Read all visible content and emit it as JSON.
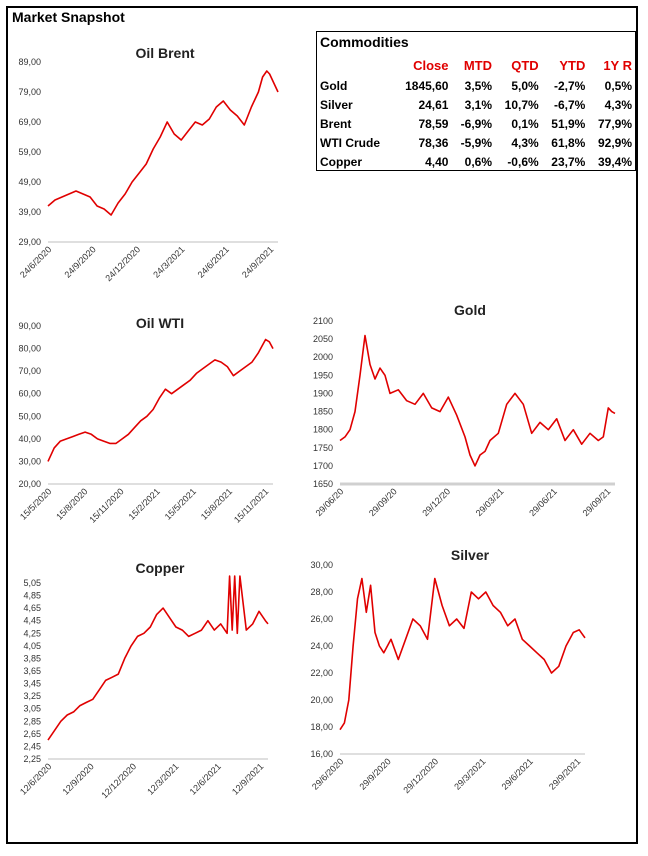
{
  "page": {
    "title": "Market Snapshot"
  },
  "table": {
    "title": "Commodities",
    "headers": [
      "",
      "Close",
      "MTD",
      "QTD",
      "YTD",
      "1Y R"
    ],
    "rows": [
      [
        "Gold",
        "1845,60",
        "3,5%",
        "5,0%",
        "-2,7%",
        "0,5%"
      ],
      [
        "Silver",
        "24,61",
        "3,1%",
        "10,7%",
        "-6,7%",
        "4,3%"
      ],
      [
        "Brent",
        "78,59",
        "-6,9%",
        "0,1%",
        "51,9%",
        "77,9%"
      ],
      [
        "WTI Crude",
        "78,36",
        "-5,9%",
        "4,3%",
        "61,8%",
        "92,9%"
      ],
      [
        "Copper",
        "4,40",
        "0,6%",
        "-0,6%",
        "23,7%",
        "39,4%"
      ]
    ]
  },
  "colors": {
    "line": "#e00000",
    "header": "#e00000",
    "gold_xaxis": "#d0d0d0"
  },
  "chart_data": [
    {
      "id": "brent",
      "type": "line",
      "title": "Oil Brent",
      "ylim": [
        29,
        89
      ],
      "yticks": [
        "29,00",
        "39,00",
        "49,00",
        "59,00",
        "69,00",
        "79,00",
        "89,00"
      ],
      "xticks": [
        "24/6/2020",
        "24/9/2020",
        "24/12/2020",
        "24/3/2021",
        "24/6/2021",
        "24/9/2021"
      ],
      "xlim": [
        0,
        16.4
      ],
      "series": [
        {
          "x": [
            0,
            0.5,
            1,
            1.5,
            2,
            2.5,
            3,
            3.5,
            4,
            4.5,
            5,
            5.5,
            6,
            6.5,
            7,
            7.5,
            8,
            8.5,
            9,
            9.5,
            10,
            10.5,
            11,
            11.5,
            12,
            12.5,
            13,
            13.5,
            14,
            14.5,
            15,
            15.3,
            15.6,
            15.8,
            16,
            16.2,
            16.4
          ],
          "y": [
            41,
            43,
            44,
            45,
            46,
            45,
            44,
            41,
            40,
            38,
            42,
            45,
            49,
            52,
            55,
            60,
            64,
            69,
            65,
            63,
            66,
            69,
            68,
            70,
            74,
            76,
            73,
            71,
            68,
            74,
            79,
            84,
            86,
            85,
            83,
            81,
            79
          ]
        }
      ]
    },
    {
      "id": "wti",
      "type": "line",
      "title": "Oil WTI",
      "ylim": [
        20,
        90
      ],
      "yticks": [
        "20,00",
        "30,00",
        "40,00",
        "50,00",
        "60,00",
        "70,00",
        "80,00",
        "90,00"
      ],
      "xticks": [
        "15/5/2020",
        "15/8/2020",
        "15/11/2020",
        "15/2/2021",
        "15/5/2021",
        "15/8/2021",
        "15/11/2021"
      ],
      "xlim": [
        0,
        18.2
      ],
      "series": [
        {
          "x": [
            0,
            0.5,
            1,
            1.5,
            2,
            2.5,
            3,
            3.5,
            4,
            4.5,
            5,
            5.5,
            6,
            6.5,
            7,
            7.5,
            8,
            8.5,
            9,
            9.5,
            10,
            10.5,
            11,
            11.5,
            12,
            12.5,
            13,
            13.5,
            14,
            14.5,
            15,
            15.5,
            16,
            16.5,
            17,
            17.3,
            17.6,
            17.9,
            18.2
          ],
          "y": [
            30,
            36,
            39,
            40,
            41,
            42,
            43,
            42,
            40,
            39,
            38,
            38,
            40,
            42,
            45,
            48,
            50,
            53,
            58,
            62,
            60,
            62,
            64,
            66,
            69,
            71,
            73,
            75,
            74,
            72,
            68,
            70,
            72,
            74,
            78,
            81,
            84,
            83,
            80
          ]
        }
      ]
    },
    {
      "id": "gold",
      "type": "line",
      "title": "Gold",
      "ylim": [
        1650,
        2100
      ],
      "yticks": [
        "1650",
        "1700",
        "1750",
        "1800",
        "1850",
        "1900",
        "1950",
        "2000",
        "2050",
        "2100"
      ],
      "xticks": [
        "29/06/20",
        "29/09/20",
        "29/12/20",
        "29/03/21",
        "29/06/21",
        "29/09/21"
      ],
      "xlim": [
        0,
        16.5
      ],
      "series": [
        {
          "x": [
            0,
            0.3,
            0.6,
            0.9,
            1.2,
            1.5,
            1.8,
            2.1,
            2.4,
            2.7,
            3,
            3.5,
            4,
            4.5,
            5,
            5.5,
            6,
            6.5,
            7,
            7.5,
            7.8,
            8.1,
            8.4,
            8.7,
            9,
            9.5,
            10,
            10.5,
            11,
            11.5,
            12,
            12.5,
            13,
            13.5,
            14,
            14.5,
            15,
            15.5,
            15.8,
            16.1,
            16.3,
            16.5
          ],
          "y": [
            1770,
            1780,
            1800,
            1850,
            1950,
            2060,
            1980,
            1940,
            1970,
            1950,
            1900,
            1910,
            1880,
            1870,
            1900,
            1860,
            1850,
            1890,
            1840,
            1780,
            1730,
            1700,
            1730,
            1740,
            1770,
            1790,
            1870,
            1900,
            1870,
            1790,
            1820,
            1800,
            1830,
            1770,
            1800,
            1760,
            1790,
            1770,
            1780,
            1860,
            1850,
            1845
          ]
        }
      ]
    },
    {
      "id": "copper",
      "type": "line",
      "title": "Copper",
      "ylim": [
        2.25,
        5.05
      ],
      "yticks": [
        "2,25",
        "2,45",
        "2,65",
        "2,85",
        "3,05",
        "3,25",
        "3,45",
        "3,65",
        "3,85",
        "4,05",
        "4,25",
        "4,45",
        "4,65",
        "4,85",
        "5,05"
      ],
      "xticks": [
        "12/6/2020",
        "12/9/2020",
        "12/12/2020",
        "12/3/2021",
        "12/6/2021",
        "12/9/2021"
      ],
      "xlim": [
        0,
        17.2
      ],
      "series": [
        {
          "x": [
            0,
            0.5,
            1,
            1.5,
            2,
            2.5,
            3,
            3.5,
            4,
            4.5,
            5,
            5.5,
            6,
            6.5,
            7,
            7.5,
            8,
            8.5,
            9,
            9.5,
            10,
            10.5,
            11,
            11.5,
            12,
            12.5,
            13,
            13.5,
            14,
            14.2,
            14.4,
            14.6,
            14.8,
            15,
            15.5,
            16,
            16.5,
            17,
            17.2
          ],
          "y": [
            2.55,
            2.7,
            2.85,
            2.95,
            3.0,
            3.1,
            3.15,
            3.2,
            3.35,
            3.5,
            3.55,
            3.6,
            3.85,
            4.05,
            4.2,
            4.25,
            4.35,
            4.55,
            4.65,
            4.5,
            4.35,
            4.3,
            4.2,
            4.25,
            4.3,
            4.45,
            4.3,
            4.4,
            4.25,
            5.2,
            4.3,
            5.2,
            4.25,
            5.2,
            4.3,
            4.4,
            4.6,
            4.45,
            4.4
          ]
        }
      ]
    },
    {
      "id": "silver",
      "type": "line",
      "title": "Silver",
      "ylim": [
        16,
        30
      ],
      "yticks": [
        "16,00",
        "18,00",
        "20,00",
        "22,00",
        "24,00",
        "26,00",
        "28,00",
        "30,00"
      ],
      "xticks": [
        "29/6/2020",
        "29/9/2020",
        "29/12/2020",
        "29/3/2021",
        "29/6/2021",
        "29/9/2021"
      ],
      "xlim": [
        0,
        16.8
      ],
      "series": [
        {
          "x": [
            0,
            0.3,
            0.6,
            0.9,
            1.2,
            1.5,
            1.8,
            2.1,
            2.4,
            2.7,
            3,
            3.5,
            4,
            4.5,
            5,
            5.5,
            6,
            6.5,
            7,
            7.5,
            8,
            8.5,
            9,
            9.5,
            10,
            10.5,
            11,
            11.5,
            12,
            12.5,
            13,
            13.5,
            14,
            14.5,
            15,
            15.5,
            16,
            16.4,
            16.8
          ],
          "y": [
            17.8,
            18.3,
            20,
            24,
            27.5,
            29,
            26.5,
            28.5,
            25,
            24,
            23.5,
            24.5,
            23,
            24.5,
            26,
            25.5,
            24.5,
            29,
            27,
            25.5,
            26,
            25.3,
            28,
            27.5,
            28,
            27,
            26.5,
            25.5,
            26,
            24.5,
            24,
            23.5,
            23,
            22,
            22.5,
            24,
            25,
            25.2,
            24.6
          ]
        }
      ]
    }
  ]
}
